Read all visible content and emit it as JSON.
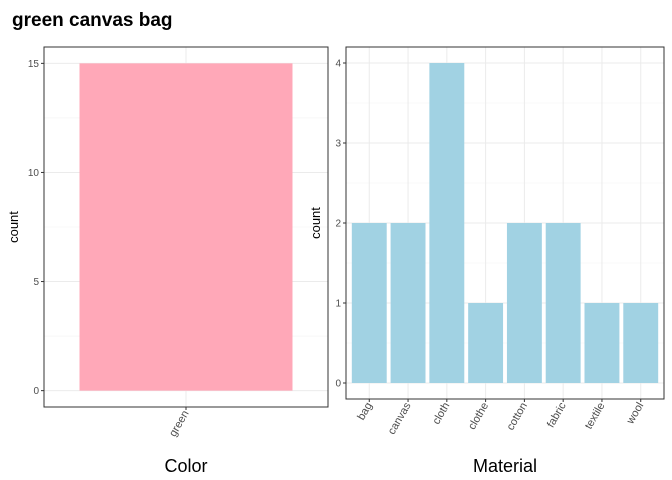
{
  "title": "green canvas bag",
  "chart_data": [
    {
      "type": "bar",
      "categories": [
        "green"
      ],
      "values": [
        15
      ],
      "xlabel": "Color",
      "ylabel": "count",
      "yticks": [
        0,
        5,
        10,
        15
      ],
      "ylim": [
        -0.75,
        15.75
      ],
      "bar_color": "#ffa8b8",
      "grid": true,
      "legend": "none"
    },
    {
      "type": "bar",
      "categories": [
        "bag",
        "canvas",
        "cloth",
        "clothe",
        "cotton",
        "fabric",
        "textile",
        "wool"
      ],
      "values": [
        2,
        2,
        4,
        1,
        2,
        2,
        1,
        1
      ],
      "xlabel": "Material",
      "ylabel": "count",
      "yticks": [
        0,
        1,
        2,
        3,
        4
      ],
      "ylim": [
        -0.2,
        4.2
      ],
      "bar_color": "#a1d2e3",
      "grid": true,
      "legend": "none"
    }
  ]
}
